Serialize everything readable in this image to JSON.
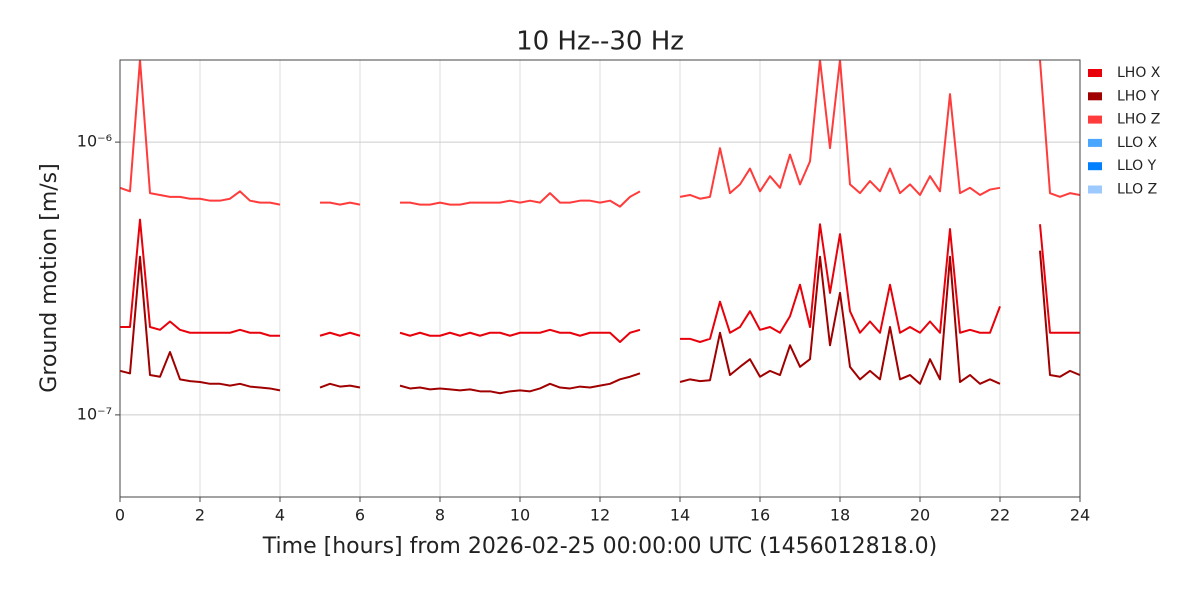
{
  "chart_data": {
    "type": "line",
    "title": "10 Hz--30 Hz",
    "x_label": "Time [hours] from 2026-02-25 00:00:00 UTC (1456012818.0)",
    "y_label": "Ground motion [m/s]",
    "y_scale": "log",
    "grid": true,
    "legend": "right",
    "xlim": [
      0,
      24
    ],
    "xticks": [
      0,
      2,
      4,
      6,
      8,
      10,
      12,
      14,
      16,
      18,
      20,
      22,
      24
    ],
    "ylim": [
      5e-08,
      2e-06
    ],
    "yticks": [
      {
        "value": 1e-07,
        "label": "10⁻⁷"
      },
      {
        "value": 1e-06,
        "label": "10⁻⁶"
      }
    ],
    "x": [
      0,
      0.25,
      0.5,
      0.75,
      1,
      1.25,
      1.5,
      1.75,
      2,
      2.25,
      2.5,
      2.75,
      3,
      3.25,
      3.5,
      3.75,
      4,
      4.25,
      4.5,
      4.75,
      5,
      5.25,
      5.5,
      5.75,
      6,
      6.25,
      6.5,
      6.75,
      7,
      7.25,
      7.5,
      7.75,
      8,
      8.25,
      8.5,
      8.75,
      9,
      9.25,
      9.5,
      9.75,
      10,
      10.25,
      10.5,
      10.75,
      11,
      11.25,
      11.5,
      11.75,
      12,
      12.25,
      12.5,
      12.75,
      13,
      13.25,
      13.5,
      13.75,
      14,
      14.25,
      14.5,
      14.75,
      15,
      15.25,
      15.5,
      15.75,
      16,
      16.25,
      16.5,
      16.75,
      17,
      17.25,
      17.5,
      17.75,
      18,
      18.25,
      18.5,
      18.75,
      19,
      19.25,
      19.5,
      19.75,
      20,
      20.25,
      20.5,
      20.75,
      21,
      21.25,
      21.5,
      21.75,
      22,
      22.25,
      22.5,
      22.75,
      23,
      23.25,
      23.5,
      23.75,
      24
    ],
    "series": [
      {
        "name": "LHO X",
        "color": "#e8000b",
        "values": [
          2.1e-07,
          2.1e-07,
          5.2e-07,
          2.1e-07,
          2.05e-07,
          2.2e-07,
          2.05e-07,
          2e-07,
          2e-07,
          2e-07,
          2e-07,
          2e-07,
          2.05e-07,
          2e-07,
          2e-07,
          1.95e-07,
          1.95e-07,
          null,
          null,
          null,
          1.95e-07,
          2e-07,
          1.95e-07,
          2e-07,
          1.95e-07,
          null,
          null,
          null,
          2e-07,
          1.95e-07,
          2e-07,
          1.95e-07,
          1.95e-07,
          2e-07,
          1.95e-07,
          2e-07,
          1.95e-07,
          2e-07,
          2e-07,
          1.95e-07,
          2e-07,
          2e-07,
          2e-07,
          2.05e-07,
          2e-07,
          2e-07,
          1.95e-07,
          2e-07,
          2e-07,
          2e-07,
          1.85e-07,
          2e-07,
          2.05e-07,
          null,
          null,
          null,
          1.9e-07,
          1.9e-07,
          1.85e-07,
          1.9e-07,
          2.6e-07,
          2e-07,
          2.1e-07,
          2.4e-07,
          2.05e-07,
          2.1e-07,
          2e-07,
          2.3e-07,
          3e-07,
          2.1e-07,
          5e-07,
          2.8e-07,
          4.6e-07,
          2.4e-07,
          2e-07,
          2.2e-07,
          2e-07,
          3e-07,
          2e-07,
          2.1e-07,
          2e-07,
          2.2e-07,
          2e-07,
          4.8e-07,
          2e-07,
          2.05e-07,
          2e-07,
          2e-07,
          2.5e-07,
          null,
          null,
          null,
          5e-07,
          2e-07,
          2e-07,
          2e-07,
          2e-07
        ]
      },
      {
        "name": "LHO Y",
        "color": "#a00000",
        "values": [
          1.45e-07,
          1.42e-07,
          3.8e-07,
          1.4e-07,
          1.38e-07,
          1.7e-07,
          1.35e-07,
          1.33e-07,
          1.32e-07,
          1.3e-07,
          1.3e-07,
          1.28e-07,
          1.3e-07,
          1.27e-07,
          1.26e-07,
          1.25e-07,
          1.23e-07,
          null,
          null,
          null,
          1.26e-07,
          1.3e-07,
          1.27e-07,
          1.28e-07,
          1.26e-07,
          null,
          null,
          null,
          1.28e-07,
          1.25e-07,
          1.26e-07,
          1.24e-07,
          1.25e-07,
          1.24e-07,
          1.23e-07,
          1.24e-07,
          1.22e-07,
          1.22e-07,
          1.2e-07,
          1.22e-07,
          1.23e-07,
          1.22e-07,
          1.25e-07,
          1.3e-07,
          1.26e-07,
          1.25e-07,
          1.27e-07,
          1.26e-07,
          1.28e-07,
          1.3e-07,
          1.35e-07,
          1.38e-07,
          1.42e-07,
          null,
          null,
          null,
          1.32e-07,
          1.35e-07,
          1.33e-07,
          1.34e-07,
          2e-07,
          1.4e-07,
          1.5e-07,
          1.6e-07,
          1.38e-07,
          1.45e-07,
          1.4e-07,
          1.8e-07,
          1.5e-07,
          1.6e-07,
          3.8e-07,
          1.8e-07,
          2.8e-07,
          1.5e-07,
          1.35e-07,
          1.45e-07,
          1.35e-07,
          2.1e-07,
          1.35e-07,
          1.4e-07,
          1.3e-07,
          1.6e-07,
          1.35e-07,
          3.8e-07,
          1.32e-07,
          1.4e-07,
          1.3e-07,
          1.35e-07,
          1.3e-07,
          null,
          null,
          null,
          4e-07,
          1.4e-07,
          1.38e-07,
          1.45e-07,
          1.4e-07
        ]
      },
      {
        "name": "LHO Z",
        "color": "#ff3b3b",
        "values": [
          6.8e-07,
          6.6e-07,
          2e-06,
          6.5e-07,
          6.4e-07,
          6.3e-07,
          6.3e-07,
          6.2e-07,
          6.2e-07,
          6.1e-07,
          6.1e-07,
          6.2e-07,
          6.6e-07,
          6.1e-07,
          6e-07,
          6e-07,
          5.9e-07,
          null,
          null,
          null,
          6e-07,
          6e-07,
          5.9e-07,
          6e-07,
          5.9e-07,
          null,
          null,
          null,
          6e-07,
          6e-07,
          5.9e-07,
          5.9e-07,
          6e-07,
          5.9e-07,
          5.9e-07,
          6e-07,
          6e-07,
          6e-07,
          6e-07,
          6.1e-07,
          6e-07,
          6.1e-07,
          6e-07,
          6.5e-07,
          6e-07,
          6e-07,
          6.1e-07,
          6.1e-07,
          6e-07,
          6.1e-07,
          5.8e-07,
          6.3e-07,
          6.6e-07,
          null,
          null,
          null,
          6.3e-07,
          6.4e-07,
          6.2e-07,
          6.3e-07,
          9.5e-07,
          6.5e-07,
          7e-07,
          8e-07,
          6.6e-07,
          7.5e-07,
          6.8e-07,
          9e-07,
          7e-07,
          8.5e-07,
          2e-06,
          9.5e-07,
          2e-06,
          7e-07,
          6.5e-07,
          7.2e-07,
          6.6e-07,
          8e-07,
          6.5e-07,
          7e-07,
          6.4e-07,
          7.5e-07,
          6.6e-07,
          1.5e-06,
          6.5e-07,
          6.8e-07,
          6.4e-07,
          6.7e-07,
          6.8e-07,
          null,
          null,
          null,
          2e-06,
          6.5e-07,
          6.3e-07,
          6.5e-07,
          6.4e-07
        ]
      },
      {
        "name": "LLO X",
        "color": "#4ba6ff",
        "values": [
          null,
          null,
          null,
          null,
          null,
          null,
          null,
          null,
          null,
          null,
          null,
          null,
          null,
          null,
          null,
          null,
          null,
          null,
          null,
          null,
          null,
          null,
          null,
          null,
          null,
          null,
          null,
          null,
          null,
          null,
          null,
          null,
          null,
          null,
          null,
          null,
          null,
          null,
          null,
          null,
          null,
          null,
          null,
          null,
          null,
          null,
          null,
          null,
          null,
          null,
          null,
          null,
          null,
          null,
          null,
          null,
          null,
          null,
          null,
          null,
          null,
          null,
          null,
          null,
          null,
          null,
          null,
          null,
          null,
          null,
          null,
          null,
          null,
          null,
          null,
          null,
          null,
          null,
          null,
          null,
          null,
          null,
          null,
          null,
          null,
          null,
          null,
          null,
          null,
          null,
          null,
          null,
          null,
          null,
          null,
          null,
          null
        ]
      },
      {
        "name": "LLO Y",
        "color": "#0080ff",
        "values": [
          null,
          null,
          null,
          null,
          null,
          null,
          null,
          null,
          null,
          null,
          null,
          null,
          null,
          null,
          null,
          null,
          null,
          null,
          null,
          null,
          null,
          null,
          null,
          null,
          null,
          null,
          null,
          null,
          null,
          null,
          null,
          null,
          null,
          null,
          null,
          null,
          null,
          null,
          null,
          null,
          null,
          null,
          null,
          null,
          null,
          null,
          null,
          null,
          null,
          null,
          null,
          null,
          null,
          null,
          null,
          null,
          null,
          null,
          null,
          null,
          null,
          null,
          null,
          null,
          null,
          null,
          null,
          null,
          null,
          null,
          null,
          null,
          null,
          null,
          null,
          null,
          null,
          null,
          null,
          null,
          null,
          null,
          null,
          null,
          null,
          null,
          null,
          null,
          null,
          null,
          null,
          null,
          null,
          null,
          null,
          null,
          null
        ]
      },
      {
        "name": "LLO Z",
        "color": "#9ccaff",
        "values": [
          null,
          null,
          null,
          null,
          null,
          null,
          null,
          null,
          null,
          null,
          null,
          null,
          null,
          null,
          null,
          null,
          null,
          null,
          null,
          null,
          null,
          null,
          null,
          null,
          null,
          null,
          null,
          null,
          null,
          null,
          null,
          null,
          null,
          null,
          null,
          null,
          null,
          null,
          null,
          null,
          null,
          null,
          null,
          null,
          null,
          null,
          null,
          null,
          null,
          null,
          null,
          null,
          null,
          null,
          null,
          null,
          null,
          null,
          null,
          null,
          null,
          null,
          null,
          null,
          null,
          null,
          null,
          null,
          null,
          null,
          null,
          null,
          null,
          null,
          null,
          null,
          null,
          null,
          null,
          null,
          null,
          null,
          null,
          null,
          null,
          null,
          null,
          null,
          null,
          null,
          null,
          null,
          null,
          null,
          null,
          null,
          null
        ]
      }
    ]
  }
}
